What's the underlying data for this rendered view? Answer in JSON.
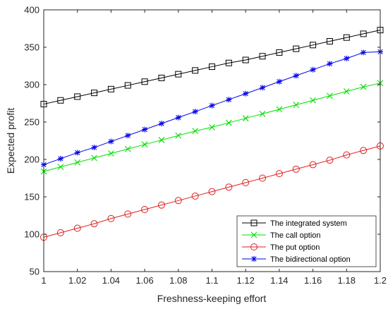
{
  "chart_data": {
    "type": "line",
    "title": "",
    "xlabel": "Freshness-keeping effort",
    "ylabel": "Expected profit",
    "xlim": [
      1,
      1.2
    ],
    "ylim": [
      50,
      400
    ],
    "xticks": [
      1,
      1.02,
      1.04,
      1.06,
      1.08,
      1.1,
      1.12,
      1.14,
      1.16,
      1.18,
      1.2
    ],
    "xtick_labels": [
      "1",
      "1.02",
      "1.04",
      "1.06",
      "1.08",
      "1.1",
      "1.12",
      "1.14",
      "1.16",
      "1.18",
      "1.2"
    ],
    "yticks": [
      50,
      100,
      150,
      200,
      250,
      300,
      350,
      400
    ],
    "ytick_labels": [
      "50",
      "100",
      "150",
      "200",
      "250",
      "300",
      "350",
      "400"
    ],
    "grid": false,
    "legend_position": "bottom-right",
    "x": [
      1.0,
      1.01,
      1.02,
      1.03,
      1.04,
      1.05,
      1.06,
      1.07,
      1.08,
      1.09,
      1.1,
      1.11,
      1.12,
      1.13,
      1.14,
      1.15,
      1.16,
      1.17,
      1.18,
      1.19,
      1.2
    ],
    "series": [
      {
        "name": "The integrated system",
        "color": "#000000",
        "marker": "square",
        "values": [
          274,
          279,
          284,
          289,
          294,
          299,
          304,
          309,
          314,
          319,
          324,
          329,
          333,
          338,
          343,
          348,
          353,
          358,
          363,
          368,
          373
        ]
      },
      {
        "name": "The call option",
        "color": "#00e000",
        "marker": "x",
        "values": [
          184,
          190,
          196,
          202,
          208,
          214,
          220,
          226,
          232,
          238,
          243,
          249,
          255,
          261,
          267,
          273,
          279,
          285,
          291,
          297,
          302
        ]
      },
      {
        "name": "The put option",
        "color": "#e02020",
        "marker": "circle",
        "values": [
          96,
          102,
          108,
          114,
          121,
          127,
          133,
          139,
          145,
          151,
          157,
          163,
          169,
          175,
          181,
          187,
          193,
          199,
          206,
          212,
          218
        ]
      },
      {
        "name": "The bidirectional option",
        "color": "#0000ee",
        "marker": "star",
        "values": [
          193,
          201,
          209,
          216,
          224,
          232,
          240,
          248,
          256,
          264,
          272,
          280,
          288,
          296,
          304,
          312,
          320,
          328,
          335,
          343,
          344
        ]
      }
    ]
  }
}
